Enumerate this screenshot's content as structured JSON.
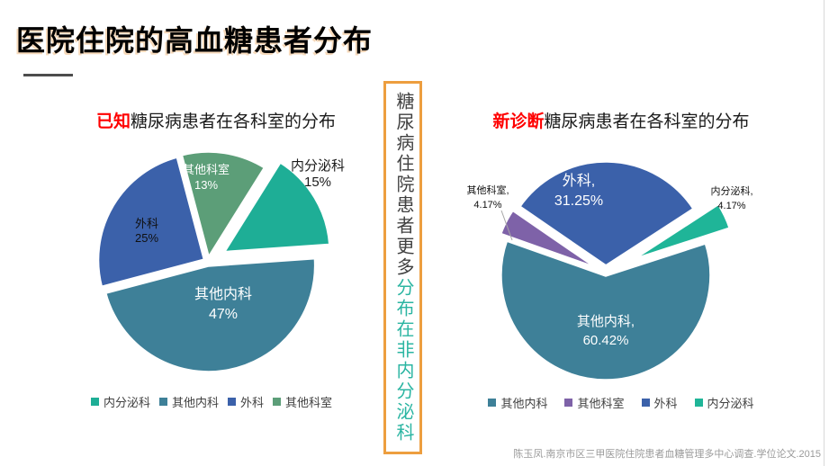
{
  "page": {
    "title": "医院住院的高血糖患者分布",
    "citation": "陈玉凤.南京市区三甲医院住院患者血糖管理多中心调查.学位论文.2015"
  },
  "left_chart": {
    "title_accent": "已知",
    "title_rest": "糖尿病患者在各科室的分布"
  },
  "right_chart": {
    "title_accent": "新诊断",
    "title_rest": "糖尿病患者在各科室的分布"
  },
  "callout": {
    "text_dark": "糖尿病住院患者更多",
    "text_teal": "分布在非内分泌科",
    "border_color": "#ED9E3F",
    "teal_color": "#2BB5A2",
    "dark_color": "#404040"
  },
  "accent_red": "#FF0000",
  "chart_data": [
    {
      "type": "pie",
      "title": "已知糖尿病患者在各科室的分布",
      "categories": [
        "内分泌科",
        "其他内科",
        "外科",
        "其他科室"
      ],
      "values": [
        15,
        47,
        25,
        13
      ],
      "colors": [
        "#1EAE96",
        "#3E8098",
        "#3B61AA",
        "#5C9E78"
      ],
      "start_angle": 32,
      "labels": [
        {
          "text": "内分泌科",
          "value": "15%"
        },
        {
          "text": "其他内科",
          "value": "47%"
        },
        {
          "text": "外科",
          "value": "25%"
        },
        {
          "text": "其他科室",
          "value": "13%"
        }
      ],
      "legend": [
        "内分泌科",
        "其他内科",
        "外科",
        "其他科室"
      ],
      "legend_position": "bottom"
    },
    {
      "type": "pie",
      "title": "新诊断糖尿病患者在各科室的分布",
      "categories": [
        "其他内科",
        "其他科室",
        "外科",
        "内分泌科"
      ],
      "values": [
        60.42,
        4.17,
        31.25,
        4.17
      ],
      "colors": [
        "#3E8098",
        "#7E62A8",
        "#3B61AA",
        "#1FB598"
      ],
      "start_angle": 72,
      "labels": [
        {
          "text": "其他内科,",
          "value": "60.42%"
        },
        {
          "text": "其他科室,",
          "value": "4.17%"
        },
        {
          "text": "外科,",
          "value": "31.25%"
        },
        {
          "text": "内分泌科,",
          "value": "4.17%"
        }
      ],
      "legend": [
        "其他内科",
        "其他科室",
        "外科",
        "内分泌科"
      ],
      "legend_position": "bottom"
    }
  ]
}
